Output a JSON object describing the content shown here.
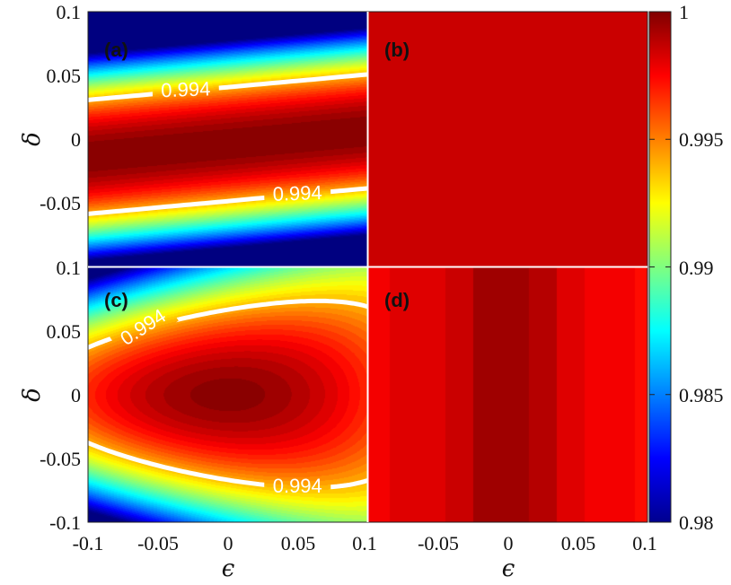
{
  "chart_data": {
    "type": "heatmap",
    "colorbar": {
      "min": 0.98,
      "max": 1,
      "ticks": [
        "1",
        "0.995",
        "0.99",
        "0.985",
        "0.98"
      ],
      "tick_values": [
        1,
        0.995,
        0.99,
        0.985,
        0.98
      ],
      "colormap": "jet"
    },
    "panels": [
      {
        "label": "(a)",
        "xlim": [
          -0.1,
          0.1
        ],
        "ylim": [
          -0.1,
          0.1
        ],
        "contour_level": "0.994",
        "contour_labels": [
          "0.994",
          "0.994"
        ],
        "model": "1 - 3.0*(delta+0.004-0.1*eps)^2",
        "coef": {
          "a": 3.0,
          "cx": 0.1,
          "d0": 0.004
        }
      },
      {
        "label": "(b)",
        "xlim": [
          -0.1,
          0.1
        ],
        "ylim": [
          -0.1,
          0.1
        ],
        "uniform_value": 0.9985
      },
      {
        "label": "(c)",
        "xlim": [
          -0.1,
          0.1
        ],
        "ylim": [
          -0.1,
          0.1
        ],
        "contour_level": "0.994",
        "contour_labels": [
          "0.994",
          "0.994"
        ],
        "model": "0.9998 - 0.3*(eps-0.02*delta)^2 - 1.3*delta^2 + 7*eps*delta^2"
      },
      {
        "label": "(d)",
        "xlim": [
          -0.1,
          0.1
        ],
        "ylim": [
          -0.1,
          0.1
        ],
        "stripe_eps": [
          -0.095,
          -0.075,
          -0.055,
          -0.035,
          -0.015,
          0.005,
          0.025,
          0.045,
          0.065,
          0.085,
          0.098
        ],
        "stripe_values": [
          0.9976,
          0.998,
          0.9983,
          0.9986,
          0.9992,
          0.9993,
          0.9988,
          0.9982,
          0.9978,
          0.9975,
          0.9973
        ]
      }
    ],
    "x_ticks_left": [
      "-0.1",
      "-0.05",
      "0",
      "0.05",
      "0.1"
    ],
    "x_ticks_right": [
      "-0.05",
      "0",
      "0.05",
      "0.1"
    ],
    "y_ticks_top": [
      "0.1",
      "0.05",
      "0",
      "-0.05"
    ],
    "y_ticks_bottom": [
      "0.1",
      "0.05",
      "0",
      "-0.05",
      "-0.1"
    ],
    "xlabel": "ϵ",
    "ylabel": "δ"
  }
}
